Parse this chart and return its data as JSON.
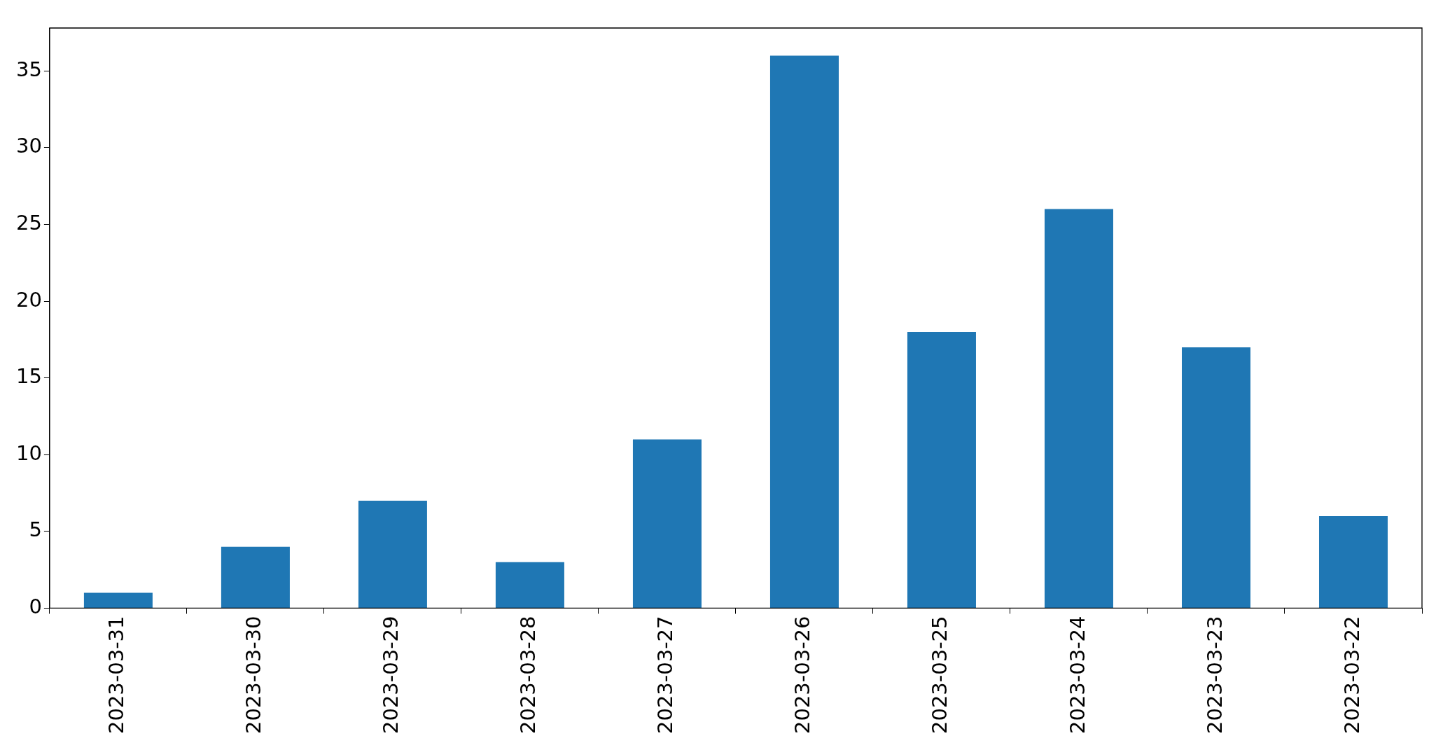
{
  "chart_data": {
    "type": "bar",
    "categories": [
      "2023-03-31",
      "2023-03-30",
      "2023-03-29",
      "2023-03-28",
      "2023-03-27",
      "2023-03-26",
      "2023-03-25",
      "2023-03-24",
      "2023-03-23",
      "2023-03-22"
    ],
    "values": [
      1,
      4,
      7,
      3,
      11,
      36,
      18,
      26,
      17,
      6
    ],
    "color": "#1f77b4",
    "ylim": [
      0,
      37.8
    ],
    "yticks": [
      0,
      5,
      10,
      15,
      20,
      25,
      30,
      35
    ],
    "grid": false
  }
}
